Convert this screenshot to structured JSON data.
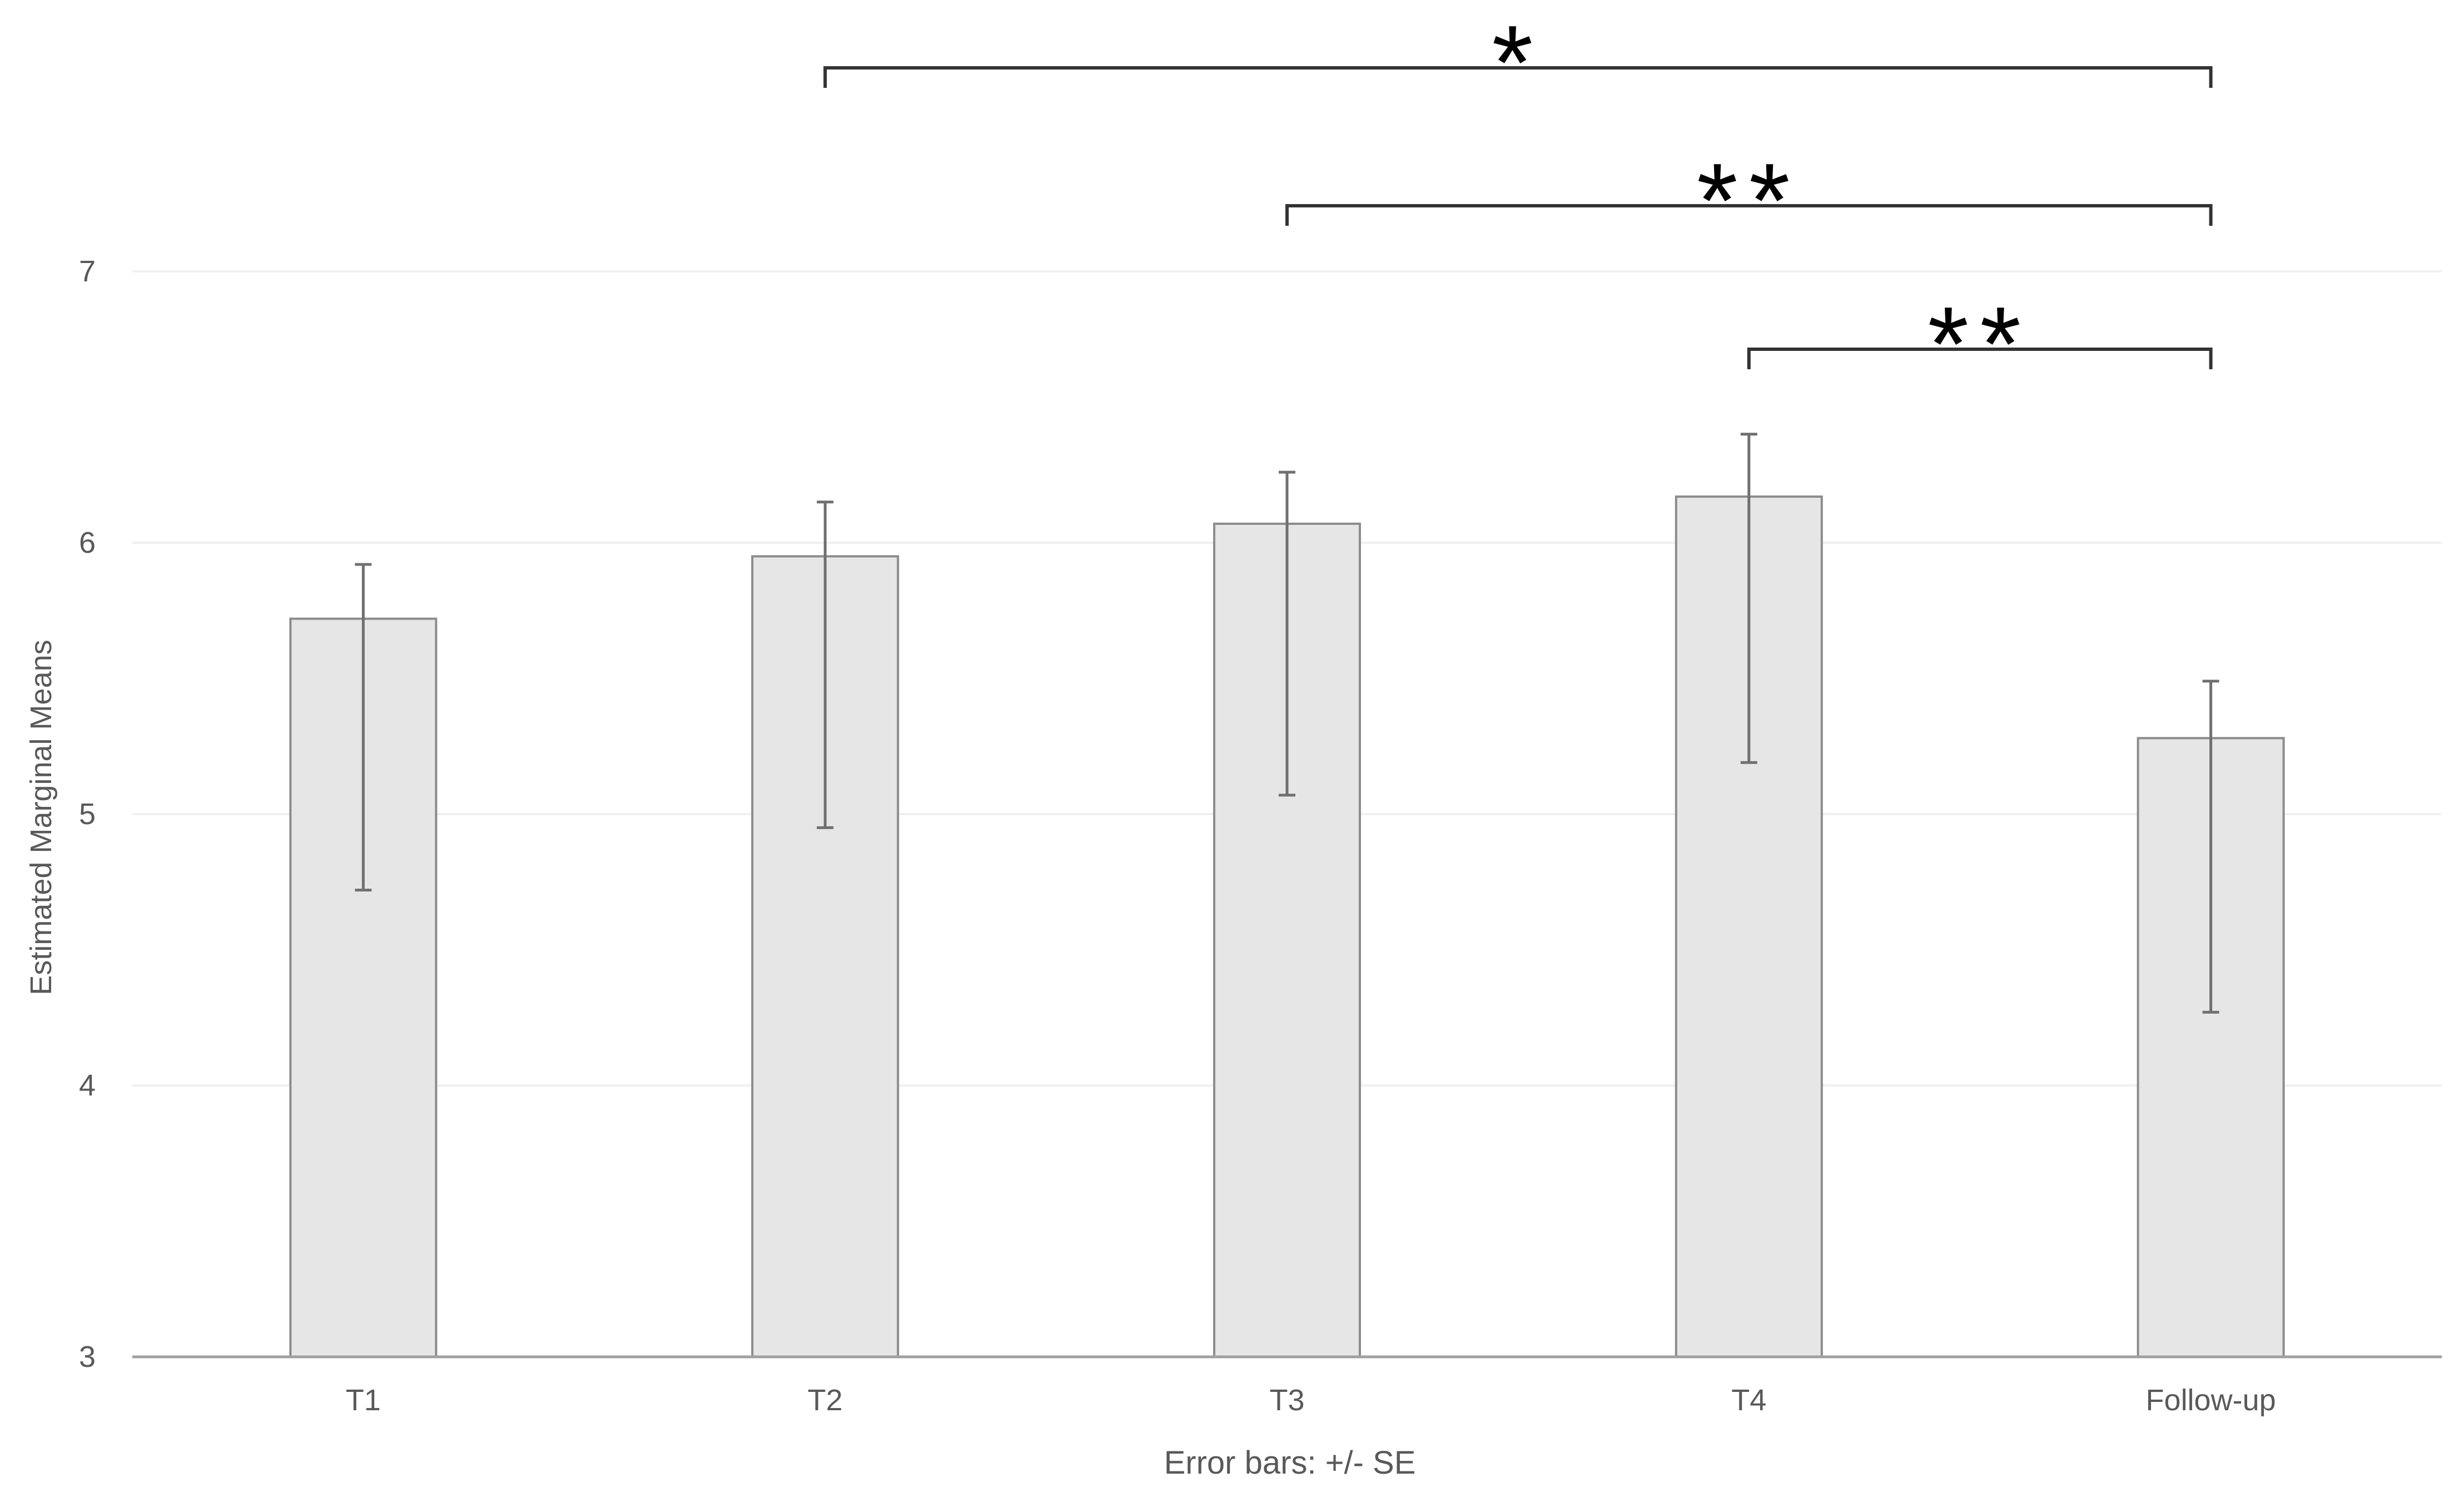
{
  "chart_data": {
    "type": "bar",
    "categories": [
      "T1",
      "T2",
      "T3",
      "T4",
      "Follow-up"
    ],
    "values": [
      5.72,
      5.95,
      6.07,
      6.17,
      5.28
    ],
    "error_low": [
      4.72,
      4.95,
      5.07,
      5.19,
      4.27
    ],
    "error_high": [
      5.92,
      6.15,
      6.26,
      6.4,
      5.49
    ],
    "ylabel": "Estimated Marginal Means",
    "xlabel": "Error bars: +/- SE",
    "ylim": [
      3,
      7.6
    ],
    "yticks": [
      3,
      4,
      5,
      6,
      7
    ],
    "grid": true,
    "legend": "none",
    "significance": [
      {
        "from": "T2",
        "to": "Follow-up",
        "label": "*"
      },
      {
        "from": "T3",
        "to": "Follow-up",
        "label": "**"
      },
      {
        "from": "T4",
        "to": "Follow-up",
        "label": "**"
      }
    ],
    "colors": {
      "bar_fill": "#e6e6e6",
      "bar_stroke": "#8c8c8c",
      "error_bar": "#707070",
      "gridline": "#f0f0f0",
      "axis": "#a0a0a0",
      "tick_text": "#595959",
      "bracket": "#333333",
      "star": "#000000"
    }
  }
}
